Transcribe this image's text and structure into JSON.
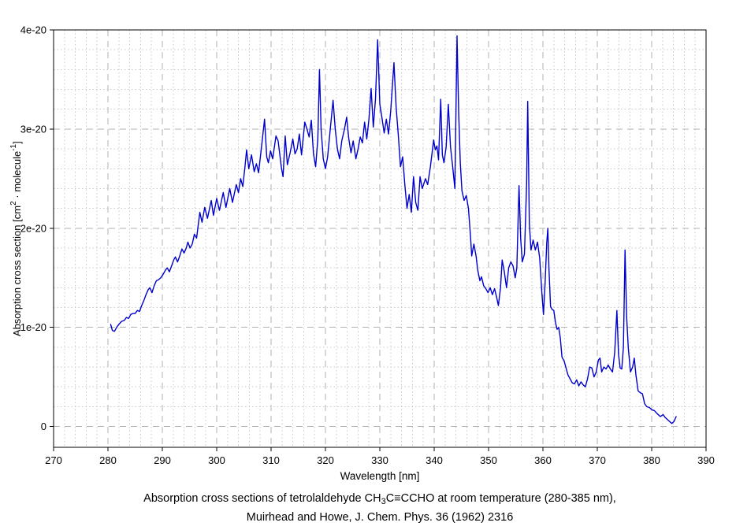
{
  "figure": {
    "caption": {
      "line1_pre": "Absorption cross sections of tetrolaldehyde CH",
      "line1_sub": "3",
      "line1_post": "C≡CCHO at room temperature (280-385 nm),",
      "line2": "Muirhead and Howe, J. Chem. Phys. 36 (1962) 2316"
    }
  },
  "chart_data": {
    "type": "line",
    "title": "",
    "xlabel": "Wavelength [nm]",
    "ylabel": "Absorption cross section [cm² · molecule⁻¹]",
    "ylabel_parts": {
      "pre": "Absorption cross section [cm",
      "sup1": "2",
      "mid": " · molecule",
      "sup2": "-1",
      "post": "]"
    },
    "xlim": [
      270,
      390
    ],
    "ylim": [
      0,
      4
    ],
    "y_frame_min": -0.21,
    "x_ticks": [
      270,
      280,
      290,
      300,
      310,
      320,
      330,
      340,
      350,
      360,
      370,
      380,
      390
    ],
    "x_major_step": 10,
    "x_minor_step": 2,
    "y_ticks": [
      {
        "value": 0,
        "label": "0"
      },
      {
        "value": 1,
        "label": "1e-20"
      },
      {
        "value": 2,
        "label": "2e-20"
      },
      {
        "value": 3,
        "label": "3e-20"
      },
      {
        "value": 4,
        "label": "4e-20"
      }
    ],
    "y_minor_step": 0.2,
    "grid": "major dashed, minor dotted",
    "legend": "none",
    "line_color": "#0000cd",
    "values_scale": "1e-20 cm^2 / molecule",
    "series": [
      {
        "name": "absorption cross section",
        "points": [
          [
            280.5,
            1.03
          ],
          [
            280.8,
            0.97
          ],
          [
            281.2,
            0.96
          ],
          [
            281.6,
            1.0
          ],
          [
            282.0,
            1.03
          ],
          [
            282.5,
            1.06
          ],
          [
            283.0,
            1.07
          ],
          [
            283.4,
            1.1
          ],
          [
            283.8,
            1.09
          ],
          [
            284.2,
            1.13
          ],
          [
            284.6,
            1.14
          ],
          [
            285.0,
            1.14
          ],
          [
            285.4,
            1.17
          ],
          [
            285.8,
            1.16
          ],
          [
            286.2,
            1.22
          ],
          [
            286.6,
            1.27
          ],
          [
            287.0,
            1.33
          ],
          [
            287.4,
            1.38
          ],
          [
            287.7,
            1.4
          ],
          [
            288.1,
            1.35
          ],
          [
            288.5,
            1.42
          ],
          [
            288.9,
            1.47
          ],
          [
            289.3,
            1.48
          ],
          [
            289.7,
            1.5
          ],
          [
            290.1,
            1.53
          ],
          [
            290.6,
            1.58
          ],
          [
            290.9,
            1.6
          ],
          [
            291.3,
            1.56
          ],
          [
            291.7,
            1.62
          ],
          [
            292.1,
            1.68
          ],
          [
            292.4,
            1.71
          ],
          [
            292.8,
            1.66
          ],
          [
            293.2,
            1.72
          ],
          [
            293.6,
            1.79
          ],
          [
            294.0,
            1.75
          ],
          [
            294.4,
            1.8
          ],
          [
            294.7,
            1.86
          ],
          [
            295.1,
            1.8
          ],
          [
            295.5,
            1.84
          ],
          [
            295.9,
            1.94
          ],
          [
            296.3,
            1.9
          ],
          [
            296.9,
            2.16
          ],
          [
            297.3,
            2.06
          ],
          [
            297.8,
            2.21
          ],
          [
            298.3,
            2.1
          ],
          [
            299.0,
            2.28
          ],
          [
            299.4,
            2.13
          ],
          [
            300.0,
            2.3
          ],
          [
            300.5,
            2.18
          ],
          [
            301.2,
            2.36
          ],
          [
            301.7,
            2.21
          ],
          [
            302.4,
            2.4
          ],
          [
            302.9,
            2.26
          ],
          [
            303.6,
            2.44
          ],
          [
            304.0,
            2.36
          ],
          [
            304.4,
            2.5
          ],
          [
            304.8,
            2.42
          ],
          [
            305.2,
            2.62
          ],
          [
            305.5,
            2.79
          ],
          [
            305.9,
            2.6
          ],
          [
            306.4,
            2.74
          ],
          [
            306.9,
            2.57
          ],
          [
            307.3,
            2.65
          ],
          [
            307.7,
            2.56
          ],
          [
            308.2,
            2.8
          ],
          [
            308.8,
            3.1
          ],
          [
            309.2,
            2.72
          ],
          [
            309.5,
            2.66
          ],
          [
            309.9,
            2.78
          ],
          [
            310.3,
            2.7
          ],
          [
            310.9,
            2.93
          ],
          [
            311.3,
            2.88
          ],
          [
            311.9,
            2.61
          ],
          [
            312.2,
            2.52
          ],
          [
            312.6,
            2.93
          ],
          [
            313.0,
            2.64
          ],
          [
            313.5,
            2.76
          ],
          [
            314.0,
            2.9
          ],
          [
            314.4,
            2.75
          ],
          [
            314.8,
            2.8
          ],
          [
            315.2,
            2.95
          ],
          [
            315.6,
            2.74
          ],
          [
            316.2,
            3.07
          ],
          [
            316.6,
            3.0
          ],
          [
            317.0,
            2.92
          ],
          [
            317.4,
            3.09
          ],
          [
            317.8,
            2.75
          ],
          [
            318.2,
            2.62
          ],
          [
            318.6,
            2.9
          ],
          [
            318.9,
            3.6
          ],
          [
            319.2,
            3.0
          ],
          [
            319.6,
            2.7
          ],
          [
            320.0,
            2.6
          ],
          [
            320.4,
            2.72
          ],
          [
            320.8,
            2.95
          ],
          [
            321.4,
            3.29
          ],
          [
            321.8,
            3.0
          ],
          [
            322.2,
            2.8
          ],
          [
            322.6,
            2.7
          ],
          [
            323.0,
            2.88
          ],
          [
            323.5,
            3.0
          ],
          [
            323.9,
            3.12
          ],
          [
            324.3,
            2.9
          ],
          [
            324.7,
            2.76
          ],
          [
            325.1,
            2.88
          ],
          [
            325.6,
            2.7
          ],
          [
            326.0,
            2.8
          ],
          [
            326.4,
            2.92
          ],
          [
            326.8,
            2.86
          ],
          [
            327.2,
            3.07
          ],
          [
            327.6,
            2.9
          ],
          [
            328.0,
            3.1
          ],
          [
            328.4,
            3.41
          ],
          [
            328.8,
            3.02
          ],
          [
            329.2,
            3.3
          ],
          [
            329.6,
            3.9
          ],
          [
            330.0,
            3.25
          ],
          [
            330.4,
            3.11
          ],
          [
            330.8,
            2.96
          ],
          [
            331.2,
            3.1
          ],
          [
            331.6,
            2.95
          ],
          [
            332.0,
            3.18
          ],
          [
            332.6,
            3.67
          ],
          [
            333.0,
            3.22
          ],
          [
            333.4,
            2.94
          ],
          [
            333.8,
            2.62
          ],
          [
            334.2,
            2.72
          ],
          [
            334.6,
            2.44
          ],
          [
            335.0,
            2.2
          ],
          [
            335.4,
            2.34
          ],
          [
            335.8,
            2.16
          ],
          [
            336.2,
            2.52
          ],
          [
            336.6,
            2.26
          ],
          [
            337.0,
            2.18
          ],
          [
            337.4,
            2.52
          ],
          [
            337.8,
            2.4
          ],
          [
            338.4,
            2.5
          ],
          [
            338.8,
            2.44
          ],
          [
            339.3,
            2.62
          ],
          [
            339.9,
            2.89
          ],
          [
            340.2,
            2.79
          ],
          [
            340.5,
            2.83
          ],
          [
            340.8,
            2.69
          ],
          [
            341.2,
            3.3
          ],
          [
            341.5,
            2.74
          ],
          [
            341.8,
            2.66
          ],
          [
            342.2,
            2.82
          ],
          [
            342.6,
            3.25
          ],
          [
            343.0,
            2.82
          ],
          [
            343.4,
            2.62
          ],
          [
            343.8,
            2.4
          ],
          [
            344.2,
            3.94
          ],
          [
            344.5,
            3.17
          ],
          [
            344.8,
            2.66
          ],
          [
            345.1,
            2.38
          ],
          [
            345.5,
            2.28
          ],
          [
            345.9,
            2.33
          ],
          [
            346.3,
            2.2
          ],
          [
            346.7,
            1.9
          ],
          [
            346.9,
            1.72
          ],
          [
            347.3,
            1.84
          ],
          [
            347.7,
            1.72
          ],
          [
            348.0,
            1.58
          ],
          [
            348.4,
            1.47
          ],
          [
            348.7,
            1.51
          ],
          [
            349.1,
            1.42
          ],
          [
            349.5,
            1.39
          ],
          [
            349.9,
            1.35
          ],
          [
            350.3,
            1.4
          ],
          [
            350.7,
            1.33
          ],
          [
            351.1,
            1.39
          ],
          [
            351.5,
            1.3
          ],
          [
            351.8,
            1.22
          ],
          [
            352.2,
            1.4
          ],
          [
            352.5,
            1.68
          ],
          [
            352.9,
            1.56
          ],
          [
            353.3,
            1.4
          ],
          [
            353.7,
            1.6
          ],
          [
            354.1,
            1.66
          ],
          [
            354.5,
            1.62
          ],
          [
            354.9,
            1.5
          ],
          [
            355.2,
            1.6
          ],
          [
            355.6,
            2.43
          ],
          [
            355.9,
            1.9
          ],
          [
            356.2,
            1.66
          ],
          [
            356.6,
            1.74
          ],
          [
            357.0,
            2.45
          ],
          [
            357.2,
            3.28
          ],
          [
            357.5,
            2.05
          ],
          [
            357.8,
            1.78
          ],
          [
            358.2,
            1.88
          ],
          [
            358.6,
            1.78
          ],
          [
            359.0,
            1.86
          ],
          [
            359.4,
            1.7
          ],
          [
            359.8,
            1.35
          ],
          [
            360.1,
            1.13
          ],
          [
            360.4,
            1.45
          ],
          [
            360.7,
            1.85
          ],
          [
            360.9,
            2.0
          ],
          [
            361.1,
            1.6
          ],
          [
            361.4,
            1.21
          ],
          [
            361.7,
            1.18
          ],
          [
            362.0,
            1.17
          ],
          [
            362.3,
            1.05
          ],
          [
            362.6,
            0.98
          ],
          [
            362.9,
            1.0
          ],
          [
            363.2,
            0.89
          ],
          [
            363.5,
            0.7
          ],
          [
            363.9,
            0.66
          ],
          [
            364.2,
            0.6
          ],
          [
            364.6,
            0.52
          ],
          [
            365.0,
            0.48
          ],
          [
            365.4,
            0.44
          ],
          [
            365.8,
            0.43
          ],
          [
            366.2,
            0.47
          ],
          [
            366.6,
            0.41
          ],
          [
            367.0,
            0.45
          ],
          [
            367.4,
            0.42
          ],
          [
            367.8,
            0.4
          ],
          [
            368.2,
            0.48
          ],
          [
            368.6,
            0.6
          ],
          [
            369.0,
            0.59
          ],
          [
            369.4,
            0.5
          ],
          [
            369.8,
            0.55
          ],
          [
            370.2,
            0.67
          ],
          [
            370.5,
            0.69
          ],
          [
            370.8,
            0.55
          ],
          [
            371.2,
            0.6
          ],
          [
            371.6,
            0.58
          ],
          [
            372.0,
            0.62
          ],
          [
            372.4,
            0.58
          ],
          [
            372.8,
            0.55
          ],
          [
            373.2,
            0.75
          ],
          [
            373.6,
            1.17
          ],
          [
            373.9,
            0.73
          ],
          [
            374.2,
            0.59
          ],
          [
            374.5,
            0.58
          ],
          [
            374.8,
            0.8
          ],
          [
            375.1,
            1.78
          ],
          [
            375.4,
            1.1
          ],
          [
            375.7,
            0.79
          ],
          [
            376.1,
            0.55
          ],
          [
            376.5,
            0.6
          ],
          [
            376.8,
            0.69
          ],
          [
            377.1,
            0.52
          ],
          [
            377.5,
            0.36
          ],
          [
            377.9,
            0.34
          ],
          [
            378.3,
            0.33
          ],
          [
            378.7,
            0.23
          ],
          [
            379.1,
            0.2
          ],
          [
            379.6,
            0.19
          ],
          [
            380.0,
            0.17
          ],
          [
            380.5,
            0.16
          ],
          [
            381.0,
            0.13
          ],
          [
            381.6,
            0.1
          ],
          [
            382.1,
            0.12
          ],
          [
            382.5,
            0.09
          ],
          [
            382.9,
            0.07
          ],
          [
            383.3,
            0.05
          ],
          [
            383.7,
            0.03
          ],
          [
            384.1,
            0.05
          ],
          [
            384.5,
            0.1
          ]
        ]
      }
    ]
  }
}
